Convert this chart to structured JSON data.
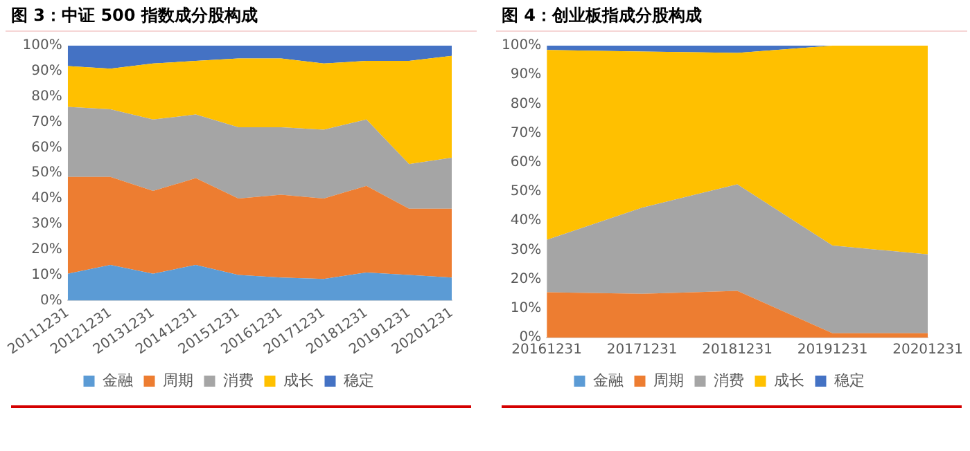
{
  "chart_data": [
    {
      "type": "area",
      "title": "图 3：中证 500 指数成分股构成",
      "stacked": true,
      "legend": "bottom",
      "categories": [
        "20111231",
        "20121231",
        "20131231",
        "20141231",
        "20151231",
        "20161231",
        "20171231",
        "20181231",
        "20191231",
        "20201231"
      ],
      "ylim": [
        0,
        100
      ],
      "yticks": [
        {
          "value": 0,
          "label": "0%"
        },
        {
          "value": 10,
          "label": "10%"
        },
        {
          "value": 20,
          "label": "20%"
        },
        {
          "value": 30,
          "label": "30%"
        },
        {
          "value": 40,
          "label": "40%"
        },
        {
          "value": 50,
          "label": "50%"
        },
        {
          "value": 60,
          "label": "60%"
        },
        {
          "value": 70,
          "label": "70%"
        },
        {
          "value": 80,
          "label": "80%"
        },
        {
          "value": 90,
          "label": "90%"
        },
        {
          "value": 100,
          "label": "100%"
        }
      ],
      "series": [
        {
          "name": "金融",
          "color": "#5b9bd5",
          "values": [
            10.5,
            14,
            10.5,
            14,
            10,
            9,
            8.5,
            11,
            10,
            9
          ]
        },
        {
          "name": "周期",
          "color": "#ed7d31",
          "values": [
            38,
            34.5,
            32.5,
            34,
            30,
            32.5,
            31.5,
            34,
            26,
            27
          ]
        },
        {
          "name": "消费",
          "color": "#a5a5a5",
          "values": [
            27.5,
            26.5,
            28,
            25,
            28,
            26.5,
            27,
            26,
            17.5,
            20
          ]
        },
        {
          "name": "成长",
          "color": "#ffc000",
          "values": [
            16,
            16,
            22,
            21,
            27,
            27,
            26,
            23,
            40.5,
            40
          ]
        },
        {
          "name": "稳定",
          "color": "#4472c4",
          "values": [
            8,
            9,
            7,
            6,
            5,
            5,
            7,
            6,
            6,
            4
          ]
        }
      ]
    },
    {
      "type": "area",
      "title": "图 4：创业板指成分股构成",
      "stacked": true,
      "legend": "bottom",
      "categories": [
        "20161231",
        "20171231",
        "20181231",
        "20191231",
        "20201231"
      ],
      "ylim": [
        0,
        100
      ],
      "yticks": [
        {
          "value": 0,
          "label": "0%"
        },
        {
          "value": 10,
          "label": "10%"
        },
        {
          "value": 20,
          "label": "20%"
        },
        {
          "value": 30,
          "label": "30%"
        },
        {
          "value": 40,
          "label": "40%"
        },
        {
          "value": 50,
          "label": "50%"
        },
        {
          "value": 60,
          "label": "60%"
        },
        {
          "value": 70,
          "label": "70%"
        },
        {
          "value": 80,
          "label": "80%"
        },
        {
          "value": 90,
          "label": "90%"
        },
        {
          "value": 100,
          "label": "100%"
        }
      ],
      "series": [
        {
          "name": "金融",
          "color": "#5b9bd5",
          "values": [
            null,
            null,
            null,
            null,
            null
          ]
        },
        {
          "name": "周期",
          "color": "#ed7d31",
          "values": [
            15.5,
            15,
            16,
            1.5,
            1.5
          ]
        },
        {
          "name": "消费",
          "color": "#a5a5a5",
          "values": [
            18,
            29.5,
            36.5,
            30,
            27
          ]
        },
        {
          "name": "成长",
          "color": "#ffc000",
          "values": [
            65,
            53.5,
            45,
            68.5,
            71.5
          ]
        },
        {
          "name": "稳定",
          "color": "#4472c4",
          "values": [
            1.5,
            2,
            2.5,
            0,
            0
          ]
        }
      ]
    }
  ]
}
